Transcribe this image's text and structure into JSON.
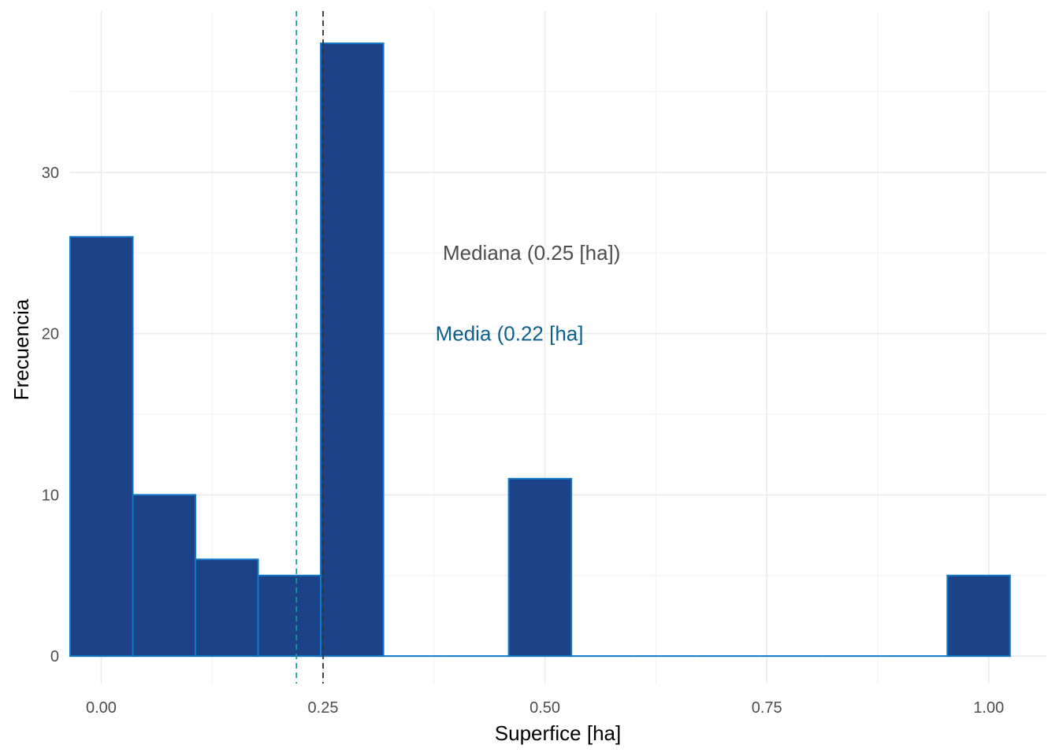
{
  "chart_data": {
    "type": "bar",
    "subtype": "histogram",
    "xlabel": "Superfice [ha]",
    "ylabel": "Frecuencia",
    "xlim": [
      -0.035,
      1.065
    ],
    "ylim": [
      -1.7,
      40
    ],
    "x_ticks": [
      0.0,
      0.25,
      0.5,
      0.75,
      1.0
    ],
    "x_tick_labels": [
      "0.00",
      "0.25",
      "0.50",
      "0.75",
      "1.00"
    ],
    "y_ticks": [
      0,
      10,
      20,
      30
    ],
    "y_tick_labels": [
      "0",
      "10",
      "20",
      "30"
    ],
    "grid": true,
    "bin_width": 0.0706,
    "bins": [
      {
        "x0": -0.035,
        "x1": 0.0356,
        "count": 26
      },
      {
        "x0": 0.0356,
        "x1": 0.1062,
        "count": 10
      },
      {
        "x0": 0.1062,
        "x1": 0.1768,
        "count": 6
      },
      {
        "x0": 0.1768,
        "x1": 0.2474,
        "count": 5
      },
      {
        "x0": 0.2474,
        "x1": 0.318,
        "count": 38
      },
      {
        "x0": 0.318,
        "x1": 0.3886,
        "count": 0
      },
      {
        "x0": 0.3886,
        "x1": 0.4592,
        "count": 0
      },
      {
        "x0": 0.4592,
        "x1": 0.5298,
        "count": 11
      },
      {
        "x0": 0.5298,
        "x1": 0.6004,
        "count": 0
      },
      {
        "x0": 0.6004,
        "x1": 0.671,
        "count": 0
      },
      {
        "x0": 0.671,
        "x1": 0.7416,
        "count": 0
      },
      {
        "x0": 0.7416,
        "x1": 0.8122,
        "count": 0
      },
      {
        "x0": 0.8122,
        "x1": 0.8828,
        "count": 0
      },
      {
        "x0": 0.8828,
        "x1": 0.9534,
        "count": 0
      },
      {
        "x0": 0.9534,
        "x1": 1.024,
        "count": 5
      }
    ],
    "reference_lines": [
      {
        "label": "Mediana (0.25 [ha])",
        "x": 0.25,
        "color": "#333333",
        "dash": "dashed"
      },
      {
        "label": "Media (0.22 [ha]",
        "x": 0.22,
        "color": "#1a9a9a",
        "dash": "dashed"
      }
    ],
    "annotations": [
      {
        "text": "Mediana (0.25 [ha])",
        "x": 0.485,
        "y": 25,
        "color": "#4d4d4d"
      },
      {
        "text": "Media (0.22 [ha]",
        "x": 0.46,
        "y": 20,
        "color": "#0d5f8a"
      }
    ],
    "colors": {
      "bar_fill": "#1c4387",
      "bar_outline": "#1177c6",
      "grid_major": "#ebebeb",
      "grid_minor": "#f3f3f3"
    }
  }
}
